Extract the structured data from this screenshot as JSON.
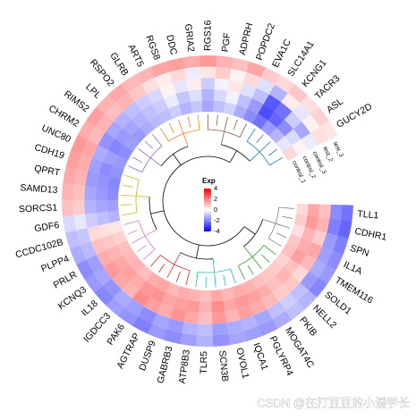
{
  "chart_data": {
    "type": "circular-heatmap",
    "categories": [
      "TLL1",
      "CDHR1",
      "SPN",
      "IL1A",
      "TMEM116",
      "SOLD1",
      "NELL2",
      "PKIB",
      "MOGAT4C",
      "PGLYRP4",
      "IQCA1",
      "OVOL1",
      "SCN3B",
      "TLR5",
      "ATP8B3",
      "GABRB3",
      "DUSP9",
      "AGTRAP",
      "PAK6",
      "IGDCC3",
      "IL18",
      "KCNQ3",
      "PRLR",
      "PLPP4",
      "CCDC102B",
      "GDF6",
      "SORCS1",
      "SAMD13",
      "QPRT",
      "CDH19",
      "UNC80",
      "CHRM2",
      "RIMS2",
      "LPL",
      "RSPO2",
      "GLRB",
      "ART5",
      "RGS8",
      "DDC",
      "GRIA2",
      "RGS16",
      "PGF",
      "ADPRH",
      "POPDC2",
      "EVA1C",
      "SLC14A1",
      "KCNG1",
      "TACR3",
      "ASL",
      "GUCY2D"
    ],
    "series": [
      {
        "name": "test_3",
        "values": [
          -2.2,
          -2.4,
          -2.0,
          -1.8,
          -1.6,
          -1.9,
          -1.2,
          -1.0,
          -1.3,
          -1.6,
          -1.5,
          -1.4,
          -1.7,
          -1.2,
          -1.5,
          -1.8,
          -1.6,
          -2.0,
          -1.7,
          -1.5,
          -1.9,
          -1.6,
          -1.8,
          -1.3,
          -1.0,
          -0.6,
          1.0,
          1.2,
          1.4,
          1.5,
          1.6,
          1.3,
          1.5,
          1.2,
          1.4,
          1.1,
          1.2,
          1.4,
          1.5,
          1.3,
          1.6,
          1.2,
          1.0,
          1.4,
          0.8,
          0.6,
          0.9,
          0.5,
          0.7,
          0.4
        ]
      },
      {
        "name": "test_2",
        "values": [
          -1.8,
          -2.0,
          -1.6,
          -1.5,
          -1.3,
          -1.6,
          -1.0,
          -0.8,
          -1.0,
          -1.4,
          -1.2,
          -1.3,
          -1.5,
          -1.0,
          -1.2,
          -1.6,
          -1.4,
          -1.8,
          -1.5,
          -1.3,
          -1.7,
          -1.4,
          -1.5,
          -1.1,
          -0.9,
          -0.4,
          0.8,
          1.0,
          1.2,
          1.3,
          1.4,
          1.1,
          1.2,
          1.0,
          1.2,
          0.9,
          0.5,
          0.3,
          0.6,
          -0.3,
          0.4,
          0.8,
          0.2,
          0.6,
          -0.5,
          -1.2,
          0.3,
          -0.4,
          0.2,
          0.5
        ]
      },
      {
        "name": "control_3",
        "values": [
          1.0,
          1.2,
          0.8,
          1.4,
          1.1,
          0.6,
          0.9,
          0.8,
          1.1,
          1.3,
          1.5,
          1.2,
          1.6,
          1.0,
          1.4,
          1.7,
          1.3,
          1.5,
          1.8,
          1.2,
          1.4,
          1.6,
          1.3,
          1.0,
          0.6,
          -0.8,
          -1.2,
          -1.4,
          -1.6,
          -1.5,
          -1.3,
          -1.7,
          -1.4,
          -1.2,
          -1.0,
          -0.8,
          -0.6,
          0.2,
          -0.4,
          0.3,
          -0.8,
          -0.2,
          0.4,
          -0.5,
          -1.0,
          -2.6,
          -2.2,
          -0.8,
          -1.4,
          -0.3
        ]
      },
      {
        "name": "control_2",
        "values": [
          1.4,
          1.6,
          1.2,
          1.3,
          1.5,
          1.0,
          1.2,
          1.0,
          1.3,
          1.5,
          1.6,
          1.4,
          1.8,
          1.2,
          1.6,
          1.5,
          1.4,
          1.7,
          1.6,
          1.3,
          1.5,
          1.4,
          1.2,
          0.9,
          0.5,
          -1.0,
          -1.4,
          -1.6,
          -1.7,
          -1.8,
          -1.5,
          -1.9,
          -1.6,
          -1.4,
          -1.2,
          -1.0,
          -0.8,
          -0.3,
          -0.9,
          -0.5,
          -1.2,
          -0.6,
          -0.2,
          -1.0,
          -1.6,
          -2.8,
          -2.4,
          -1.8,
          -0.6,
          0.2
        ]
      },
      {
        "name": "control_1",
        "values": [
          0.6,
          0.8,
          0.5,
          0.9,
          1.0,
          0.7,
          0.8,
          0.9,
          1.0,
          1.2,
          1.3,
          1.1,
          1.4,
          1.0,
          1.2,
          1.3,
          1.1,
          1.4,
          1.3,
          1.0,
          1.2,
          1.1,
          1.0,
          0.7,
          0.4,
          -1.2,
          -1.5,
          -1.8,
          -1.9,
          -1.7,
          -1.6,
          -1.8,
          -1.5,
          -1.6,
          -1.3,
          -1.1,
          -1.0,
          -0.8,
          -1.2,
          -0.9,
          -1.4,
          -1.0,
          -0.7,
          -1.3,
          -1.8,
          -2.2,
          -1.6,
          -1.2,
          -0.4,
          0.6
        ]
      }
    ],
    "legend": {
      "title": "Exp",
      "lim": [
        -4,
        4
      ],
      "ticks": [
        4,
        2,
        0,
        -2,
        -4
      ]
    },
    "colors": {
      "low": "#0000ff",
      "mid": "#ffffff",
      "high": "#ff0000"
    },
    "watermark": "CSDN @在打豆豆的小潘学长"
  }
}
